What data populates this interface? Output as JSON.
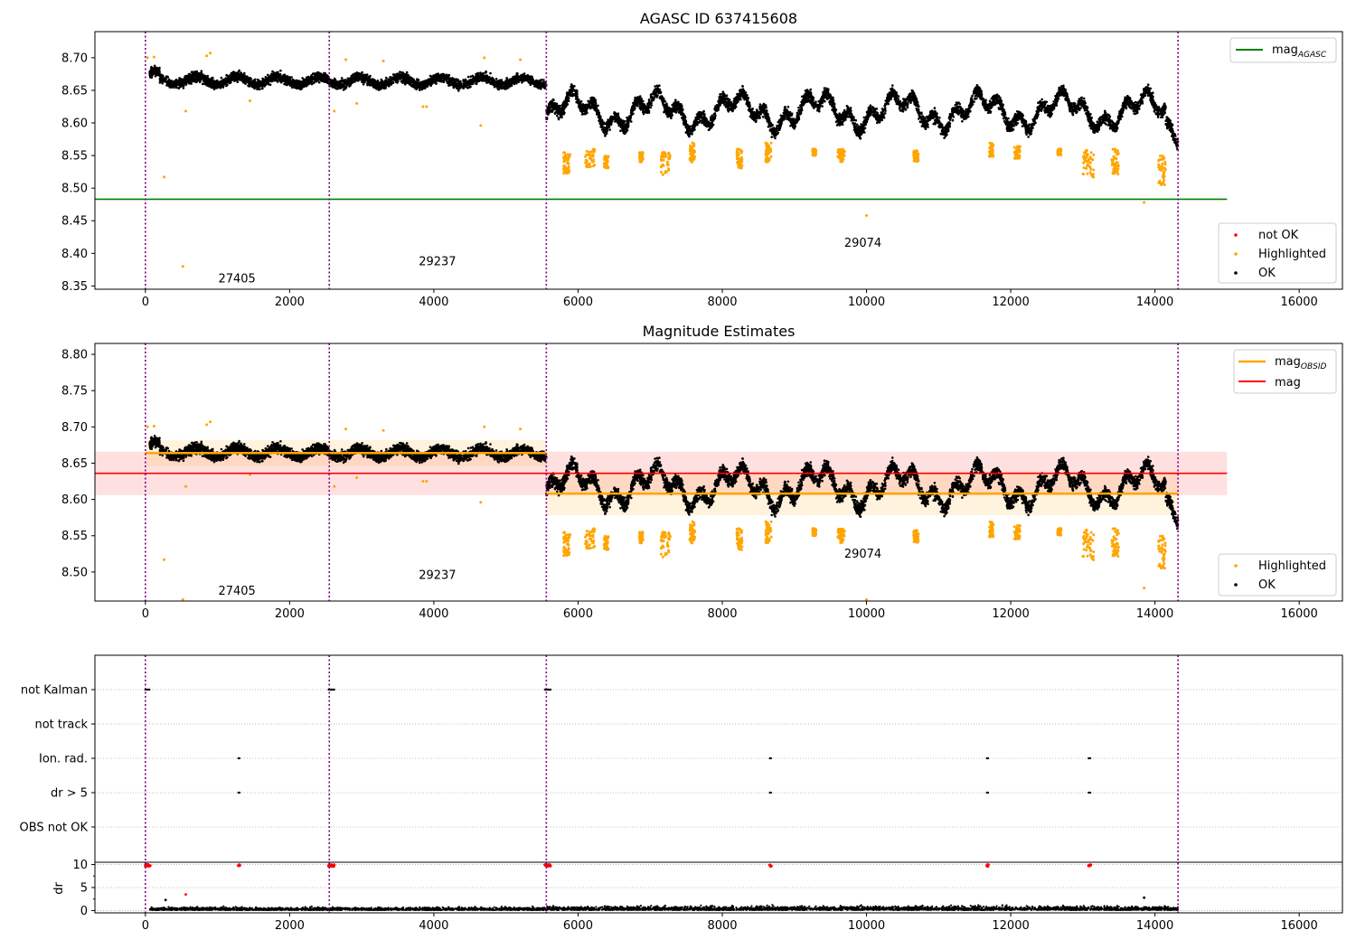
{
  "chart_data": [
    {
      "type": "scatter",
      "title": "AGASC ID 637415608",
      "xlim": [
        -700,
        16600
      ],
      "ylim": [
        8.345,
        8.74
      ],
      "xticks": [
        0,
        2000,
        4000,
        6000,
        8000,
        10000,
        12000,
        14000,
        16000
      ],
      "yticks": [
        8.35,
        8.4,
        8.45,
        8.5,
        8.55,
        8.6,
        8.65,
        8.7
      ],
      "ytick_labels": [
        "8.35",
        "8.40",
        "8.45",
        "8.50",
        "8.55",
        "8.60",
        "8.65",
        "8.70"
      ],
      "obs_boundaries": [
        0,
        2550,
        5560,
        14320
      ],
      "obs_labels": [
        {
          "text": "27405",
          "x": 1270,
          "y": 8.362
        },
        {
          "text": "29237",
          "x": 4050,
          "y": 8.389
        },
        {
          "text": "29074",
          "x": 9950,
          "y": 8.417
        }
      ],
      "reference_lines": [
        {
          "name": "mag_AGASC",
          "y": 8.483,
          "x": [
            -700,
            15000
          ],
          "color": "#008000"
        }
      ],
      "legend": {
        "upper_right": [
          "mag",
          "AGASC"
        ],
        "lower_right": [
          "not OK",
          "Highlighted",
          "OK"
        ]
      },
      "series_colors": {
        "ok": "#000000",
        "highlighted": "#ffa500",
        "not_ok": "#ff0000"
      },
      "segments": [
        {
          "x0": 60,
          "x1": 2550,
          "mean": 8.665
        },
        {
          "x0": 2550,
          "x1": 5560,
          "mean": 8.664
        },
        {
          "x0": 5560,
          "x1": 14320,
          "mean": 8.618
        }
      ],
      "highlighted_points": [
        [
          30,
          8.7
        ],
        [
          120,
          8.701
        ],
        [
          260,
          8.517
        ],
        [
          520,
          8.38
        ],
        [
          560,
          8.618
        ],
        [
          850,
          8.703
        ],
        [
          900,
          8.707
        ],
        [
          1450,
          8.634
        ],
        [
          2620,
          8.618
        ],
        [
          2780,
          8.697
        ],
        [
          2930,
          8.63
        ],
        [
          3300,
          8.695
        ],
        [
          3850,
          8.625
        ],
        [
          3900,
          8.625
        ],
        [
          4650,
          8.596
        ],
        [
          4700,
          8.7
        ],
        [
          5200,
          8.697
        ],
        [
          10000,
          8.458
        ],
        [
          13850,
          8.478
        ]
      ],
      "highlight_clusters": [
        [
          5800,
          5890,
          8.52,
          8.555
        ],
        [
          6100,
          6230,
          8.532,
          8.56
        ],
        [
          6360,
          6420,
          8.53,
          8.55
        ],
        [
          6850,
          6900,
          8.54,
          8.555
        ],
        [
          7150,
          7280,
          8.52,
          8.555
        ],
        [
          7550,
          7620,
          8.54,
          8.57
        ],
        [
          8200,
          8280,
          8.53,
          8.56
        ],
        [
          8600,
          8680,
          8.54,
          8.57
        ],
        [
          9250,
          9300,
          8.55,
          8.56
        ],
        [
          9600,
          9700,
          8.54,
          8.56
        ],
        [
          10650,
          10720,
          8.54,
          8.56
        ],
        [
          11700,
          11760,
          8.548,
          8.57
        ],
        [
          12050,
          12130,
          8.545,
          8.565
        ],
        [
          12650,
          12700,
          8.55,
          8.56
        ],
        [
          13000,
          13150,
          8.515,
          8.56
        ],
        [
          13400,
          13500,
          8.52,
          8.56
        ],
        [
          14050,
          14150,
          8.505,
          8.55
        ]
      ]
    },
    {
      "type": "scatter",
      "title": "Magnitude Estimates",
      "xlim": [
        -700,
        16600
      ],
      "ylim": [
        8.46,
        8.815
      ],
      "xticks": [
        0,
        2000,
        4000,
        6000,
        8000,
        10000,
        12000,
        14000,
        16000
      ],
      "yticks": [
        8.5,
        8.55,
        8.6,
        8.65,
        8.7,
        8.75,
        8.8
      ],
      "ytick_labels": [
        "8.50",
        "8.55",
        "8.60",
        "8.65",
        "8.70",
        "8.75",
        "8.80"
      ],
      "obs_boundaries": [
        0,
        2550,
        5560,
        14320
      ],
      "obs_labels": [
        {
          "text": "27405",
          "x": 1270,
          "y": 8.475
        },
        {
          "text": "29237",
          "x": 4050,
          "y": 8.497
        },
        {
          "text": "29074",
          "x": 9950,
          "y": 8.526
        }
      ],
      "reference_lines": [
        {
          "name": "mag",
          "y": 8.636,
          "x": [
            -700,
            15000
          ],
          "color": "#ff0000",
          "band": [
            8.606,
            8.666
          ]
        }
      ],
      "obsid_lines": [
        {
          "x0": 0,
          "x1": 5560,
          "y": 8.664,
          "band": [
            8.646,
            8.682
          ]
        },
        {
          "x0": 5560,
          "x1": 14320,
          "y": 8.608,
          "band": [
            8.578,
            8.638
          ]
        }
      ],
      "legend": {
        "upper_right": [
          "mag",
          "OBSID",
          "mag"
        ],
        "lower_right": [
          "Highlighted",
          "OK"
        ]
      },
      "series_colors": {
        "ok": "#000000",
        "highlighted": "#ffa500",
        "mag_obsid": "#ffa500",
        "mag": "#ff0000"
      }
    },
    {
      "type": "scatter",
      "title": "",
      "xlim": [
        -700,
        16600
      ],
      "xticks": [
        0,
        2000,
        4000,
        6000,
        8000,
        10000,
        12000,
        14000,
        16000
      ],
      "categories": [
        "not Kalman",
        "not track",
        "Ion. rad.",
        "dr > 5",
        "OBS not OK"
      ],
      "obs_boundaries": [
        0,
        2550,
        5560,
        14320
      ],
      "flag_points": {
        "not Kalman": [
          [
            0,
            60
          ],
          [
            2540,
            2620
          ],
          [
            5540,
            5620
          ]
        ],
        "Ion. rad.": [
          [
            1290,
            1310
          ],
          [
            8660,
            8680
          ],
          [
            11670,
            11690
          ],
          [
            13080,
            13110
          ]
        ],
        "dr > 5": [
          [
            1290,
            1310
          ],
          [
            8660,
            8680
          ],
          [
            11670,
            11690
          ],
          [
            13080,
            13110
          ]
        ]
      },
      "dr_panel": {
        "ylabel": "dr",
        "ylim": [
          -0.5,
          10.5
        ],
        "yticks": [
          0,
          5,
          10
        ],
        "ytick_labels": [
          "0",
          "5",
          "10"
        ],
        "red_clusters": [
          [
            0,
            70
          ],
          [
            1290,
            1310
          ],
          [
            2540,
            2620
          ],
          [
            5540,
            5620
          ],
          [
            8660,
            8680
          ],
          [
            11670,
            11690
          ],
          [
            13080,
            13110
          ]
        ],
        "outliers": [
          [
            560,
            3.5
          ],
          [
            280,
            2.3
          ],
          [
            13850,
            2.8
          ]
        ],
        "typical_range": [
          0.1,
          1.8
        ]
      }
    }
  ]
}
